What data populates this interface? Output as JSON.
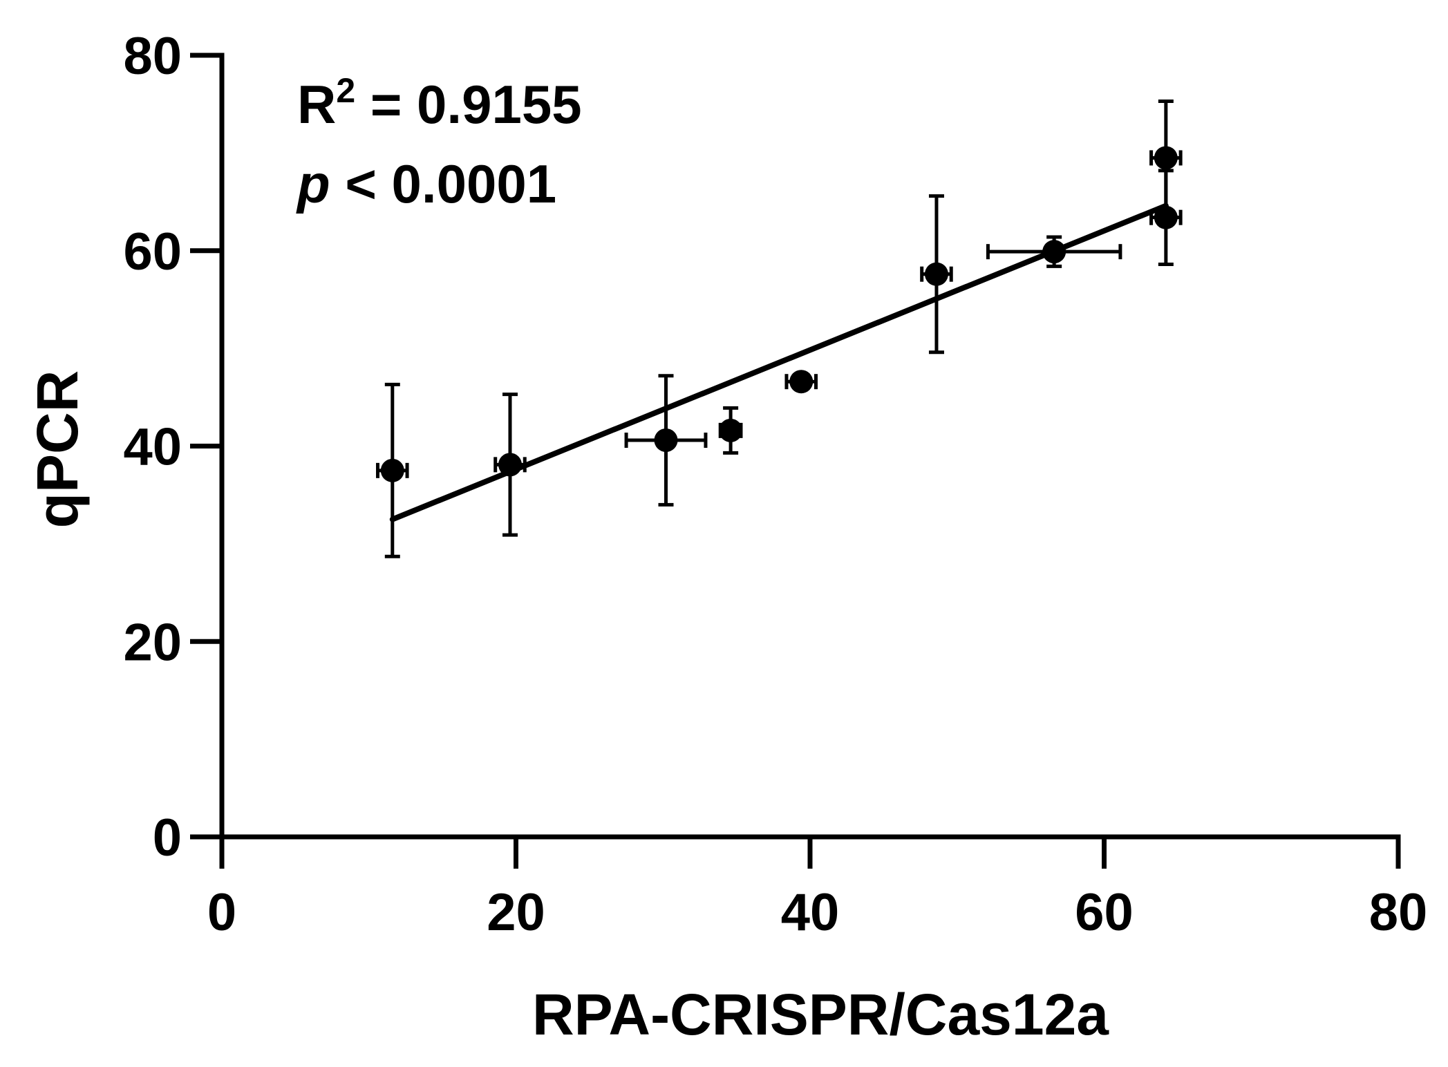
{
  "chart_data": {
    "type": "scatter",
    "xlabel": "RPA-CRISPR/Cas12a",
    "ylabel": "qPCR",
    "xlim": [
      0,
      80
    ],
    "ylim": [
      0,
      80
    ],
    "x_ticks": [
      "0",
      "20",
      "40",
      "60",
      "80"
    ],
    "y_ticks": [
      "0",
      "20",
      "40",
      "60",
      "80"
    ],
    "grid": false,
    "annotations": {
      "r2_prefix": "R",
      "r2_sup": "2",
      "r2_value": " = 0.9155",
      "p_symbol": "p",
      "p_value": " < 0.0001"
    },
    "points": [
      {
        "x": 11.6,
        "y": 37.5,
        "xerr": 1.0,
        "yerr": 8.8
      },
      {
        "x": 19.6,
        "y": 38.1,
        "xerr": 1.0,
        "yerr": 7.2
      },
      {
        "x": 30.2,
        "y": 40.6,
        "xerr": 2.7,
        "yerr": 6.6
      },
      {
        "x": 34.6,
        "y": 41.6,
        "xerr": 0.7,
        "yerr": 2.3
      },
      {
        "x": 39.4,
        "y": 46.6,
        "xerr": 1.0,
        "yerr": 0.0
      },
      {
        "x": 48.6,
        "y": 57.6,
        "xerr": 1.0,
        "yerr": 8.0
      },
      {
        "x": 56.6,
        "y": 59.9,
        "xerr": 4.5,
        "yerr": 1.5
      },
      {
        "x": 64.2,
        "y": 63.4,
        "xerr": 1.0,
        "yerr": 4.8
      },
      {
        "x": 64.2,
        "y": 69.5,
        "xerr": 1.0,
        "yerr": 5.8
      }
    ],
    "fit_line": {
      "x": [
        11.6,
        64.2
      ],
      "y": [
        32.5,
        64.6
      ]
    }
  }
}
